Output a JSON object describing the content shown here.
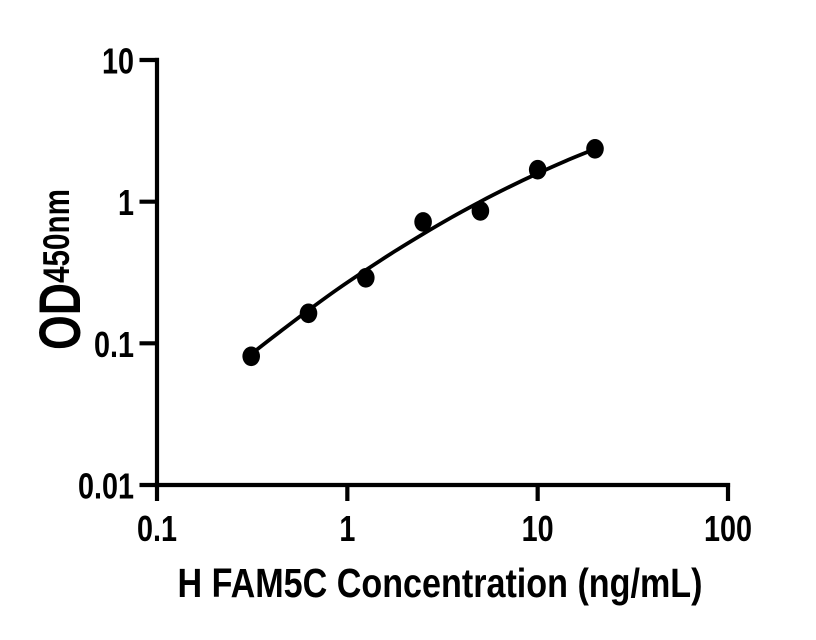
{
  "figure": {
    "background_color": "#ffffff",
    "ink_color": "#000000"
  },
  "chart_data": {
    "type": "scatter",
    "title": "",
    "xlabel": "H FAM5C Concentration (ng/mL)",
    "ylabel": "OD450nm",
    "ylabel_main": "OD",
    "ylabel_sub": "450nm",
    "x_scale": "log",
    "y_scale": "log",
    "xlim": [
      0.1,
      100
    ],
    "ylim": [
      0.01,
      10
    ],
    "grid": false,
    "legend": false,
    "x_ticks": [
      {
        "value": 0.1,
        "label": "0.1"
      },
      {
        "value": 1,
        "label": "1"
      },
      {
        "value": 10,
        "label": "10"
      },
      {
        "value": 100,
        "label": "100"
      }
    ],
    "y_ticks": [
      {
        "value": 10,
        "label": "10"
      },
      {
        "value": 1,
        "label": "1"
      },
      {
        "value": 0.1,
        "label": "0.1"
      },
      {
        "value": 0.01,
        "label": "0.01"
      }
    ],
    "series": [
      {
        "name": "standards",
        "type": "scatter",
        "marker": "filled-circle",
        "color": "#000000",
        "points": [
          [
            0.3125,
            0.081
          ],
          [
            0.625,
            0.163
          ],
          [
            1.25,
            0.29
          ],
          [
            2.5,
            0.72
          ],
          [
            5,
            0.86
          ],
          [
            10,
            1.68
          ],
          [
            20,
            2.36
          ]
        ]
      },
      {
        "name": "fit-curve",
        "type": "line",
        "color": "#000000",
        "points": [
          [
            0.3125,
            0.084
          ],
          [
            0.447,
            0.122
          ],
          [
            0.631,
            0.173
          ],
          [
            0.891,
            0.242
          ],
          [
            1.259,
            0.331
          ],
          [
            1.778,
            0.447
          ],
          [
            2.512,
            0.594
          ],
          [
            3.548,
            0.778
          ],
          [
            5.012,
            1.002
          ],
          [
            7.08,
            1.269
          ],
          [
            10,
            1.584
          ],
          [
            14.13,
            1.946
          ],
          [
            20,
            2.355
          ]
        ]
      }
    ]
  }
}
